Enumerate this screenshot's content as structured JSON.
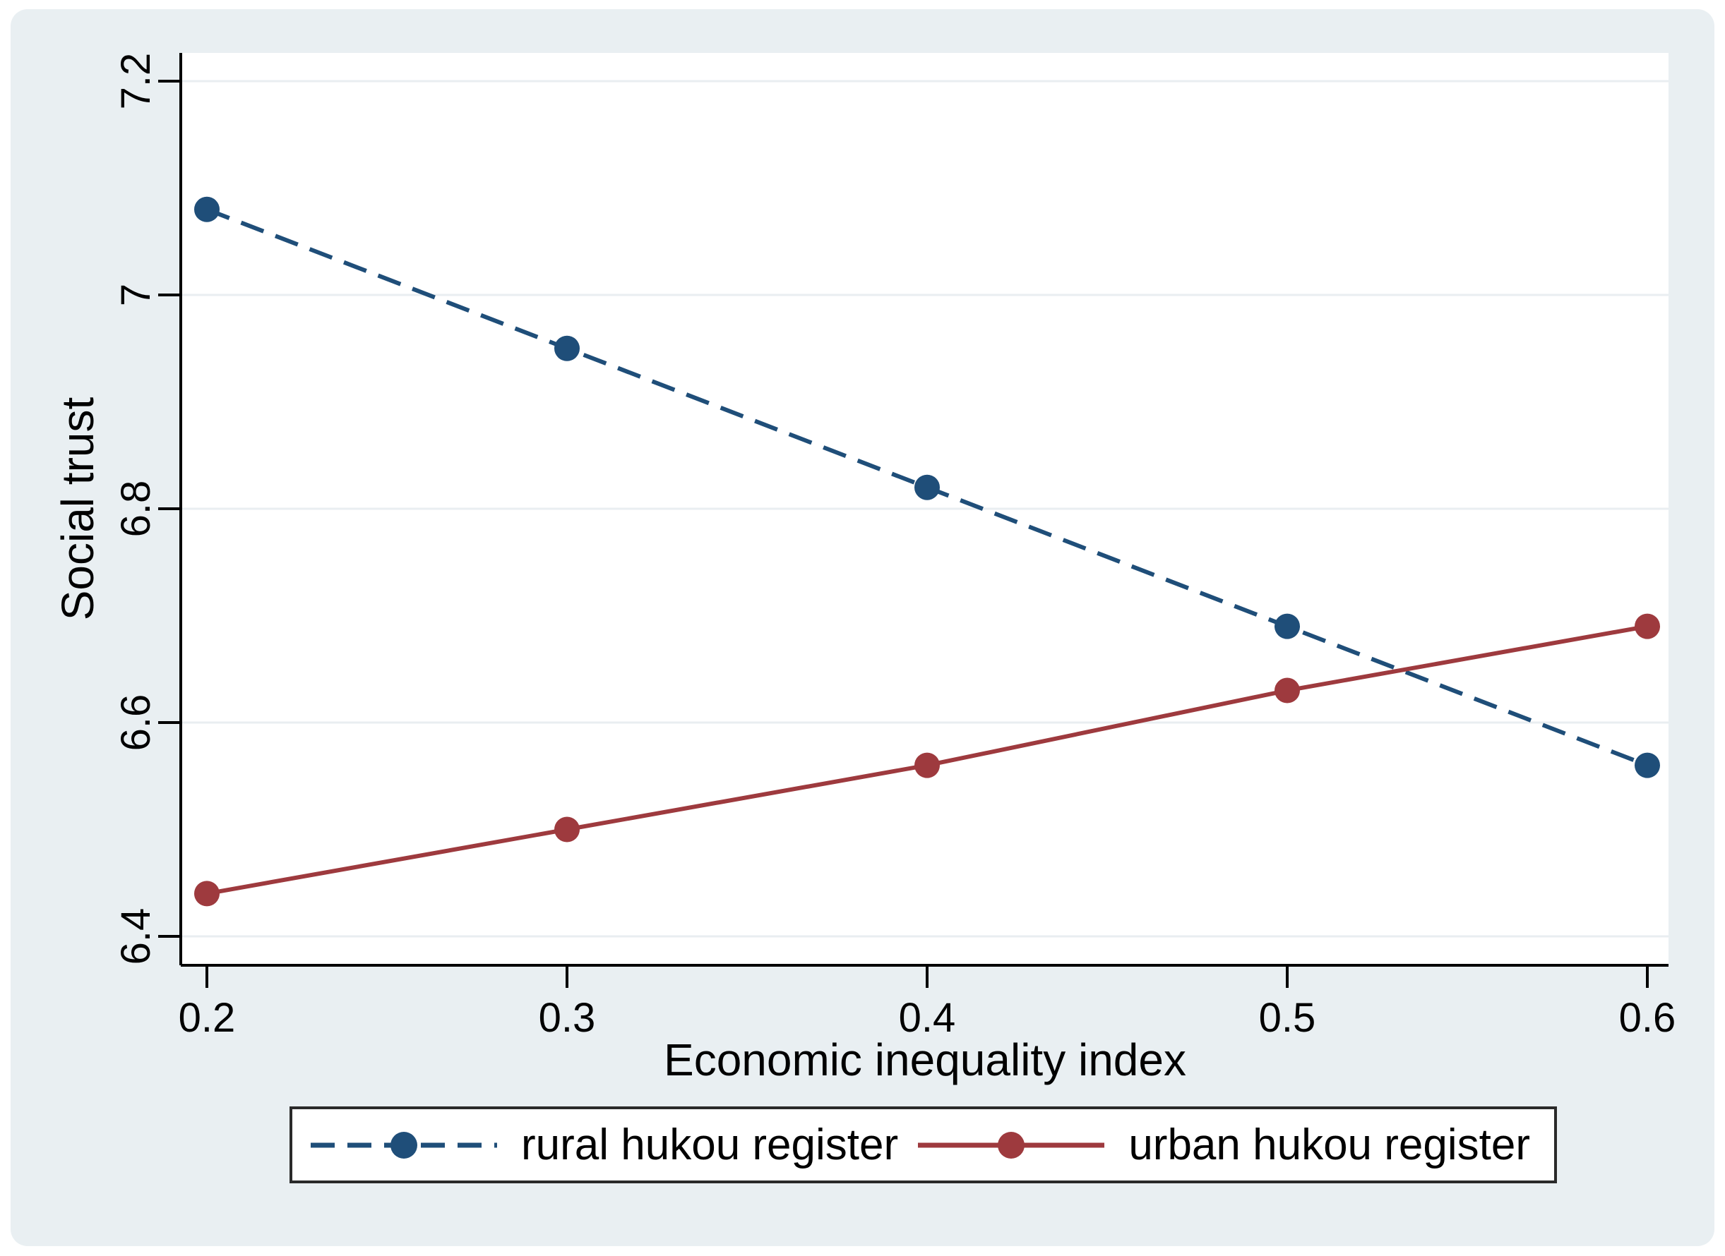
{
  "figure": {
    "colors": {
      "background": "#e9eff2",
      "plot_background": "#ffffff",
      "grid": "#e9eef1",
      "axis": "#000000",
      "legend_border": "#2a2a2a",
      "rural_series": "#1f4e79",
      "urban_series": "#9e3a3e"
    }
  },
  "chart_data": {
    "type": "line",
    "title": "",
    "xlabel": "Economic inequality index",
    "ylabel": "Social trust",
    "x": [
      0.2,
      0.3,
      0.4,
      0.5,
      0.6
    ],
    "x_tick_labels": [
      "0.2",
      "0.3",
      "0.4",
      "0.5",
      "0.6"
    ],
    "y_tick_labels": [
      "6.4",
      "6.6",
      "6.8",
      "7",
      "7.2"
    ],
    "xlim": [
      0.193,
      0.606
    ],
    "ylim": [
      6.37,
      7.23
    ],
    "grid": "horizontal",
    "legend_position": "bottom",
    "series": [
      {
        "name": "rural hukou register",
        "values": [
          7.08,
          6.95,
          6.82,
          6.69,
          6.56
        ],
        "color": "#1f4e79",
        "line_style": "dashed",
        "marker": "circle"
      },
      {
        "name": "urban hukou register",
        "values": [
          6.44,
          6.5,
          6.56,
          6.63,
          6.69
        ],
        "color": "#9e3a3e",
        "line_style": "solid",
        "marker": "circle"
      }
    ]
  }
}
